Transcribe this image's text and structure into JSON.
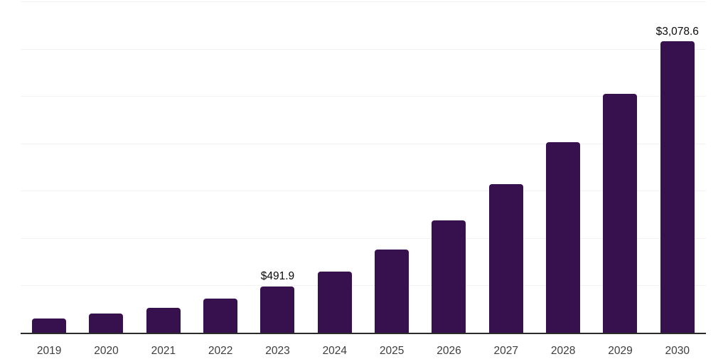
{
  "page": {
    "background_color": "#ffffff"
  },
  "chart_data": {
    "type": "bar",
    "title": "",
    "categories": [
      "2019",
      "2020",
      "2021",
      "2022",
      "2023",
      "2024",
      "2025",
      "2026",
      "2027",
      "2028",
      "2029",
      "2030"
    ],
    "values": [
      150,
      205,
      262,
      360,
      491.9,
      648,
      876,
      1184,
      1570,
      2016,
      2524,
      3078.6
    ],
    "data_labels": {
      "2023": "$491.9",
      "2030": "$3,078.6"
    },
    "xlabel": "",
    "ylabel": "",
    "ylim": [
      0,
      3500
    ],
    "gridline_interval": 500,
    "grid": true,
    "legend": "none",
    "bar_color": "#36114d",
    "gridline_color": "#f2f2f2",
    "axis_line_color": "#2b2b2b",
    "tick_label_color": "#3d3d3d",
    "data_label_color": "#0a0a0a"
  }
}
